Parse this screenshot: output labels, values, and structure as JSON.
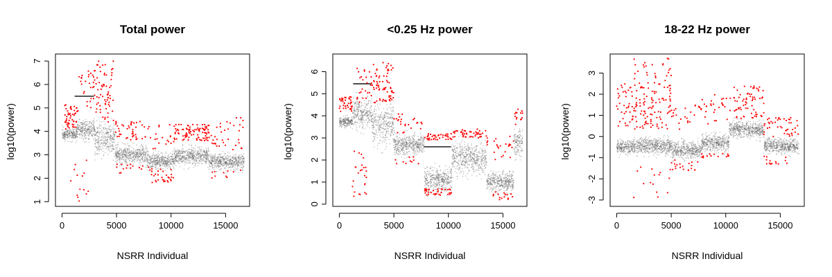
{
  "figure": {
    "background": "#ffffff"
  },
  "chart_data": [
    {
      "type": "scatter",
      "title": "Total power",
      "xlabel": "NSRR Individual",
      "ylabel": "log10(power)",
      "xlim": [
        -600,
        17200
      ],
      "ylim": [
        0.8,
        7.3
      ],
      "xticks": [
        0,
        5000,
        10000,
        15000
      ],
      "yticks": [
        1,
        2,
        3,
        4,
        5,
        6,
        7
      ],
      "grid": false,
      "legend": "none",
      "series_colors": {
        "bulk": "#4d4d4d",
        "outlier": "#ff0000"
      },
      "segments": [
        {
          "x": [
            0,
            1400
          ],
          "y_center": 3.85,
          "spread": 0.25
        },
        {
          "x": [
            1400,
            3000
          ],
          "y_center": 4.1,
          "spread": 0.4
        },
        {
          "x": [
            3000,
            4900
          ],
          "y_center": 3.7,
          "spread": 0.6
        },
        {
          "x": [
            4900,
            7800
          ],
          "y_center": 3.0,
          "spread": 0.35
        },
        {
          "x": [
            7800,
            10300
          ],
          "y_center": 2.75,
          "spread": 0.3
        },
        {
          "x": [
            10300,
            13500
          ],
          "y_center": 2.95,
          "spread": 0.35
        },
        {
          "x": [
            13500,
            16700
          ],
          "y_center": 2.7,
          "spread": 0.3
        }
      ],
      "flat_lines": [
        {
          "x": [
            1200,
            2900
          ],
          "y": 5.5
        }
      ],
      "outliers": [
        {
          "x": [
            200,
            1500
          ],
          "y": [
            4.1,
            5.2
          ],
          "n": 50
        },
        {
          "x": [
            800,
            2500
          ],
          "y": [
            1.0,
            3.0
          ],
          "n": 14
        },
        {
          "x": [
            1500,
            2900
          ],
          "y": [
            5.0,
            6.6
          ],
          "n": 25
        },
        {
          "x": [
            2900,
            4800
          ],
          "y": [
            4.4,
            7.0
          ],
          "n": 70
        },
        {
          "x": [
            4900,
            8000
          ],
          "y": [
            3.6,
            4.5
          ],
          "n": 45
        },
        {
          "x": [
            4900,
            8000
          ],
          "y": [
            2.2,
            2.6
          ],
          "n": 15
        },
        {
          "x": [
            8000,
            10300
          ],
          "y": [
            1.8,
            2.4
          ],
          "n": 30
        },
        {
          "x": [
            8000,
            10300
          ],
          "y": [
            3.2,
            4.3
          ],
          "n": 20
        },
        {
          "x": [
            10300,
            13500
          ],
          "y": [
            3.6,
            4.3
          ],
          "n": 90
        },
        {
          "x": [
            13500,
            16700
          ],
          "y": [
            3.2,
            4.7
          ],
          "n": 35
        },
        {
          "x": [
            13500,
            16700
          ],
          "y": [
            2.0,
            2.4
          ],
          "n": 10
        }
      ]
    },
    {
      "type": "scatter",
      "title": "<0.25 Hz power",
      "xlabel": "NSRR Individual",
      "ylabel": "log10(power)",
      "xlim": [
        -600,
        17200
      ],
      "ylim": [
        -0.1,
        6.8
      ],
      "xticks": [
        0,
        5000,
        10000,
        15000
      ],
      "yticks": [
        0,
        1,
        2,
        3,
        4,
        5,
        6
      ],
      "grid": false,
      "legend": "none",
      "series_colors": {
        "bulk": "#4d4d4d",
        "outlier": "#ff0000"
      },
      "segments": [
        {
          "x": [
            0,
            1200
          ],
          "y_center": 3.75,
          "spread": 0.2
        },
        {
          "x": [
            1200,
            3000
          ],
          "y_center": 4.1,
          "spread": 0.6
        },
        {
          "x": [
            3000,
            5000
          ],
          "y_center": 3.6,
          "spread": 0.8
        },
        {
          "x": [
            5000,
            7800
          ],
          "y_center": 2.7,
          "spread": 0.4
        },
        {
          "x": [
            7800,
            10300
          ],
          "y_center": 1.1,
          "spread": 0.5
        },
        {
          "x": [
            10300,
            13500
          ],
          "y_center": 2.1,
          "spread": 0.6
        },
        {
          "x": [
            13500,
            16000
          ],
          "y_center": 1.0,
          "spread": 0.4
        },
        {
          "x": [
            16000,
            16800
          ],
          "y_center": 2.8,
          "spread": 0.6
        }
      ],
      "flat_lines": [
        {
          "x": [
            1300,
            2900
          ],
          "y": 5.45
        },
        {
          "x": [
            7800,
            10200
          ],
          "y": 2.6
        }
      ],
      "outliers": [
        {
          "x": [
            0,
            1200
          ],
          "y": [
            4.2,
            4.9
          ],
          "n": 40
        },
        {
          "x": [
            1200,
            2500
          ],
          "y": [
            0.3,
            2.5
          ],
          "n": 25
        },
        {
          "x": [
            1500,
            3000
          ],
          "y": [
            4.6,
            6.2
          ],
          "n": 25
        },
        {
          "x": [
            3000,
            5000
          ],
          "y": [
            4.6,
            6.5
          ],
          "n": 70
        },
        {
          "x": [
            5000,
            7800
          ],
          "y": [
            3.2,
            4.1
          ],
          "n": 25
        },
        {
          "x": [
            5000,
            7800
          ],
          "y": [
            1.8,
            2.2
          ],
          "n": 10
        },
        {
          "x": [
            7800,
            10300
          ],
          "y": [
            2.9,
            3.2
          ],
          "n": 40
        },
        {
          "x": [
            7800,
            10300
          ],
          "y": [
            0.4,
            0.7
          ],
          "n": 35
        },
        {
          "x": [
            10300,
            13500
          ],
          "y": [
            3.0,
            3.4
          ],
          "n": 45
        },
        {
          "x": [
            13500,
            16000
          ],
          "y": [
            2.0,
            3.1
          ],
          "n": 25
        },
        {
          "x": [
            13500,
            16000
          ],
          "y": [
            0.2,
            0.6
          ],
          "n": 15
        },
        {
          "x": [
            16000,
            16800
          ],
          "y": [
            3.6,
            4.4
          ],
          "n": 15
        }
      ]
    },
    {
      "type": "scatter",
      "title": "18-22 Hz power",
      "xlabel": "NSRR Individual",
      "ylabel": "log10(power)",
      "xlim": [
        -600,
        17200
      ],
      "ylim": [
        -3.3,
        3.9
      ],
      "xticks": [
        0,
        5000,
        10000,
        15000
      ],
      "yticks": [
        -3,
        -2,
        -1,
        0,
        1,
        2,
        3
      ],
      "grid": false,
      "legend": "none",
      "series_colors": {
        "bulk": "#4d4d4d",
        "outlier": "#ff0000"
      },
      "segments": [
        {
          "x": [
            0,
            1500
          ],
          "y_center": -0.5,
          "spread": 0.3
        },
        {
          "x": [
            1500,
            5000
          ],
          "y_center": -0.45,
          "spread": 0.35
        },
        {
          "x": [
            5000,
            7800
          ],
          "y_center": -0.65,
          "spread": 0.35
        },
        {
          "x": [
            7800,
            10300
          ],
          "y_center": -0.3,
          "spread": 0.35
        },
        {
          "x": [
            10300,
            13500
          ],
          "y_center": 0.35,
          "spread": 0.35
        },
        {
          "x": [
            13500,
            16700
          ],
          "y_center": -0.45,
          "spread": 0.3
        }
      ],
      "flat_lines": [],
      "outliers": [
        {
          "x": [
            0,
            1500
          ],
          "y": [
            0.5,
            2.5
          ],
          "n": 40
        },
        {
          "x": [
            1500,
            5000
          ],
          "y": [
            0.3,
            3.7
          ],
          "n": 130
        },
        {
          "x": [
            1500,
            5000
          ],
          "y": [
            -3.1,
            -1.4
          ],
          "n": 15
        },
        {
          "x": [
            5000,
            7800
          ],
          "y": [
            0.3,
            1.5
          ],
          "n": 25
        },
        {
          "x": [
            5000,
            7800
          ],
          "y": [
            -1.6,
            -1.1
          ],
          "n": 20
        },
        {
          "x": [
            7800,
            10300
          ],
          "y": [
            0.6,
            2.0
          ],
          "n": 25
        },
        {
          "x": [
            7800,
            10300
          ],
          "y": [
            -1.0,
            -0.8
          ],
          "n": 15
        },
        {
          "x": [
            10300,
            13500
          ],
          "y": [
            0.8,
            2.4
          ],
          "n": 70
        },
        {
          "x": [
            13500,
            16700
          ],
          "y": [
            0.0,
            0.9
          ],
          "n": 45
        },
        {
          "x": [
            13500,
            16700
          ],
          "y": [
            -1.3,
            -0.9
          ],
          "n": 15
        }
      ]
    }
  ]
}
